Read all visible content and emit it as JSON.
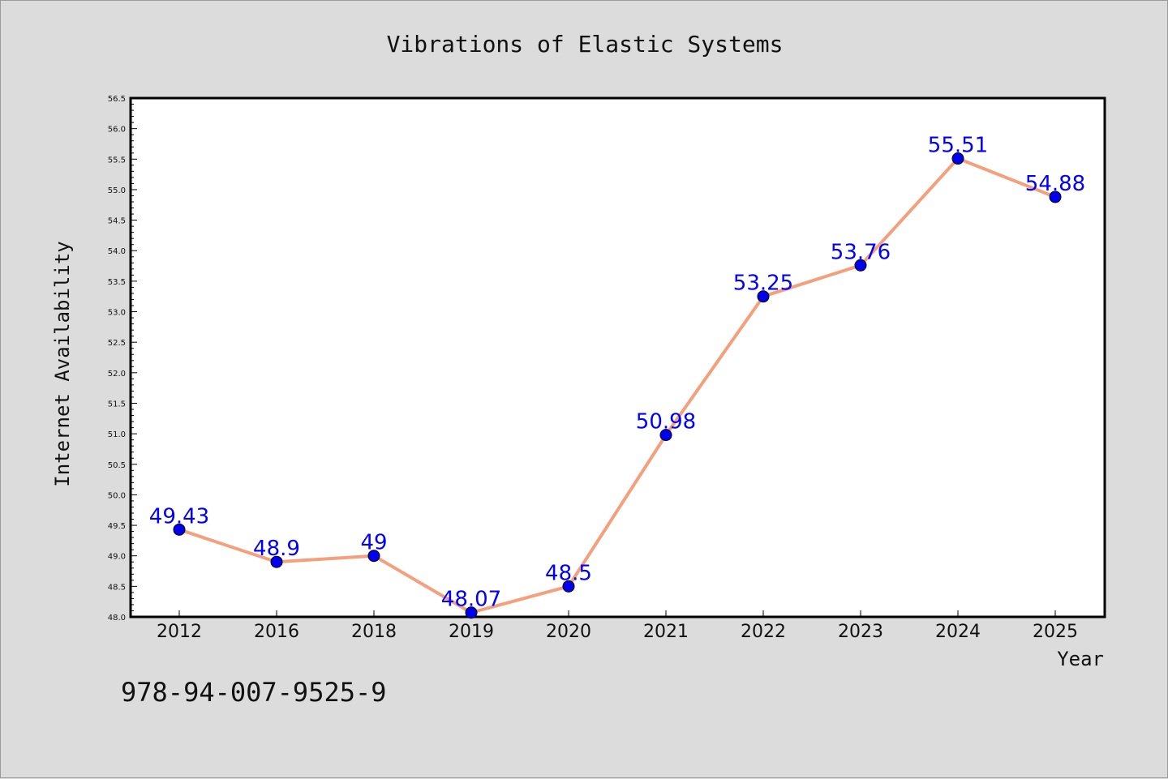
{
  "chart_data": {
    "type": "line",
    "title": "Vibrations of Elastic Systems",
    "xlabel": "Year",
    "ylabel": "Internet Availability",
    "categories": [
      "2012",
      "2016",
      "2018",
      "2019",
      "2020",
      "2021",
      "2022",
      "2023",
      "2024",
      "2025"
    ],
    "series": [
      {
        "values": [
          49.43,
          48.9,
          49,
          48.07,
          48.5,
          50.98,
          53.25,
          53.76,
          55.51,
          54.88
        ],
        "data_labels": [
          "49.43",
          "48.9",
          "49",
          "48.07",
          "48.5",
          "50.98",
          "53.25",
          "53.76",
          "55.51",
          "54.88"
        ],
        "line_color": "#f4a07c",
        "marker_color": "#0000ee"
      }
    ],
    "ylim": [
      48.0,
      56.5
    ],
    "yticks": [
      "48.0",
      "48.5",
      "49.0",
      "49.5",
      "50.0",
      "50.5",
      "51.0",
      "51.5",
      "52.0",
      "52.5",
      "53.0",
      "53.5",
      "54.0",
      "54.5",
      "55.0",
      "55.5",
      "56.0",
      "56.5"
    ],
    "grid": false,
    "legend": "none",
    "colors": {
      "background": "#dcdcdc",
      "plot_background": "#ffffff",
      "data_label": "#0000ff"
    }
  },
  "annotation": {
    "isbn": "978-94-007-9525-9"
  }
}
